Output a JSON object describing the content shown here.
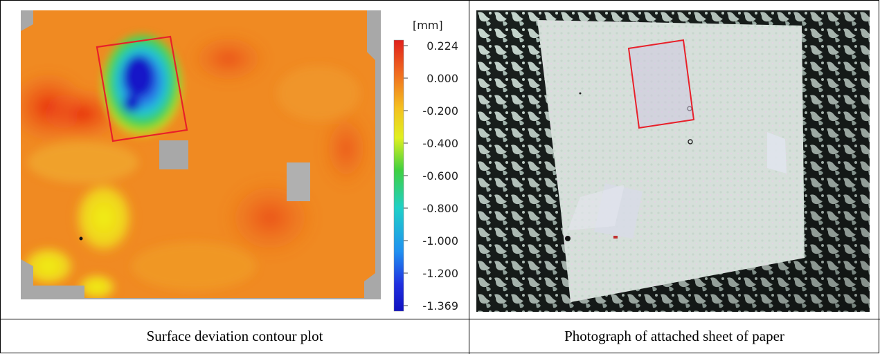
{
  "left_panel": {
    "caption": "Surface deviation contour plot",
    "colorbar": {
      "unit": "[mm]",
      "ticks": [
        "0.224",
        "0.000",
        "-0.200",
        "-0.400",
        "-0.600",
        "-0.800",
        "-1.000",
        "-1.200",
        "-1.369"
      ]
    },
    "highlight_color": "#e8202a"
  },
  "right_panel": {
    "caption": "Photograph of attached sheet of paper",
    "highlight_color": "#e8202a"
  }
}
